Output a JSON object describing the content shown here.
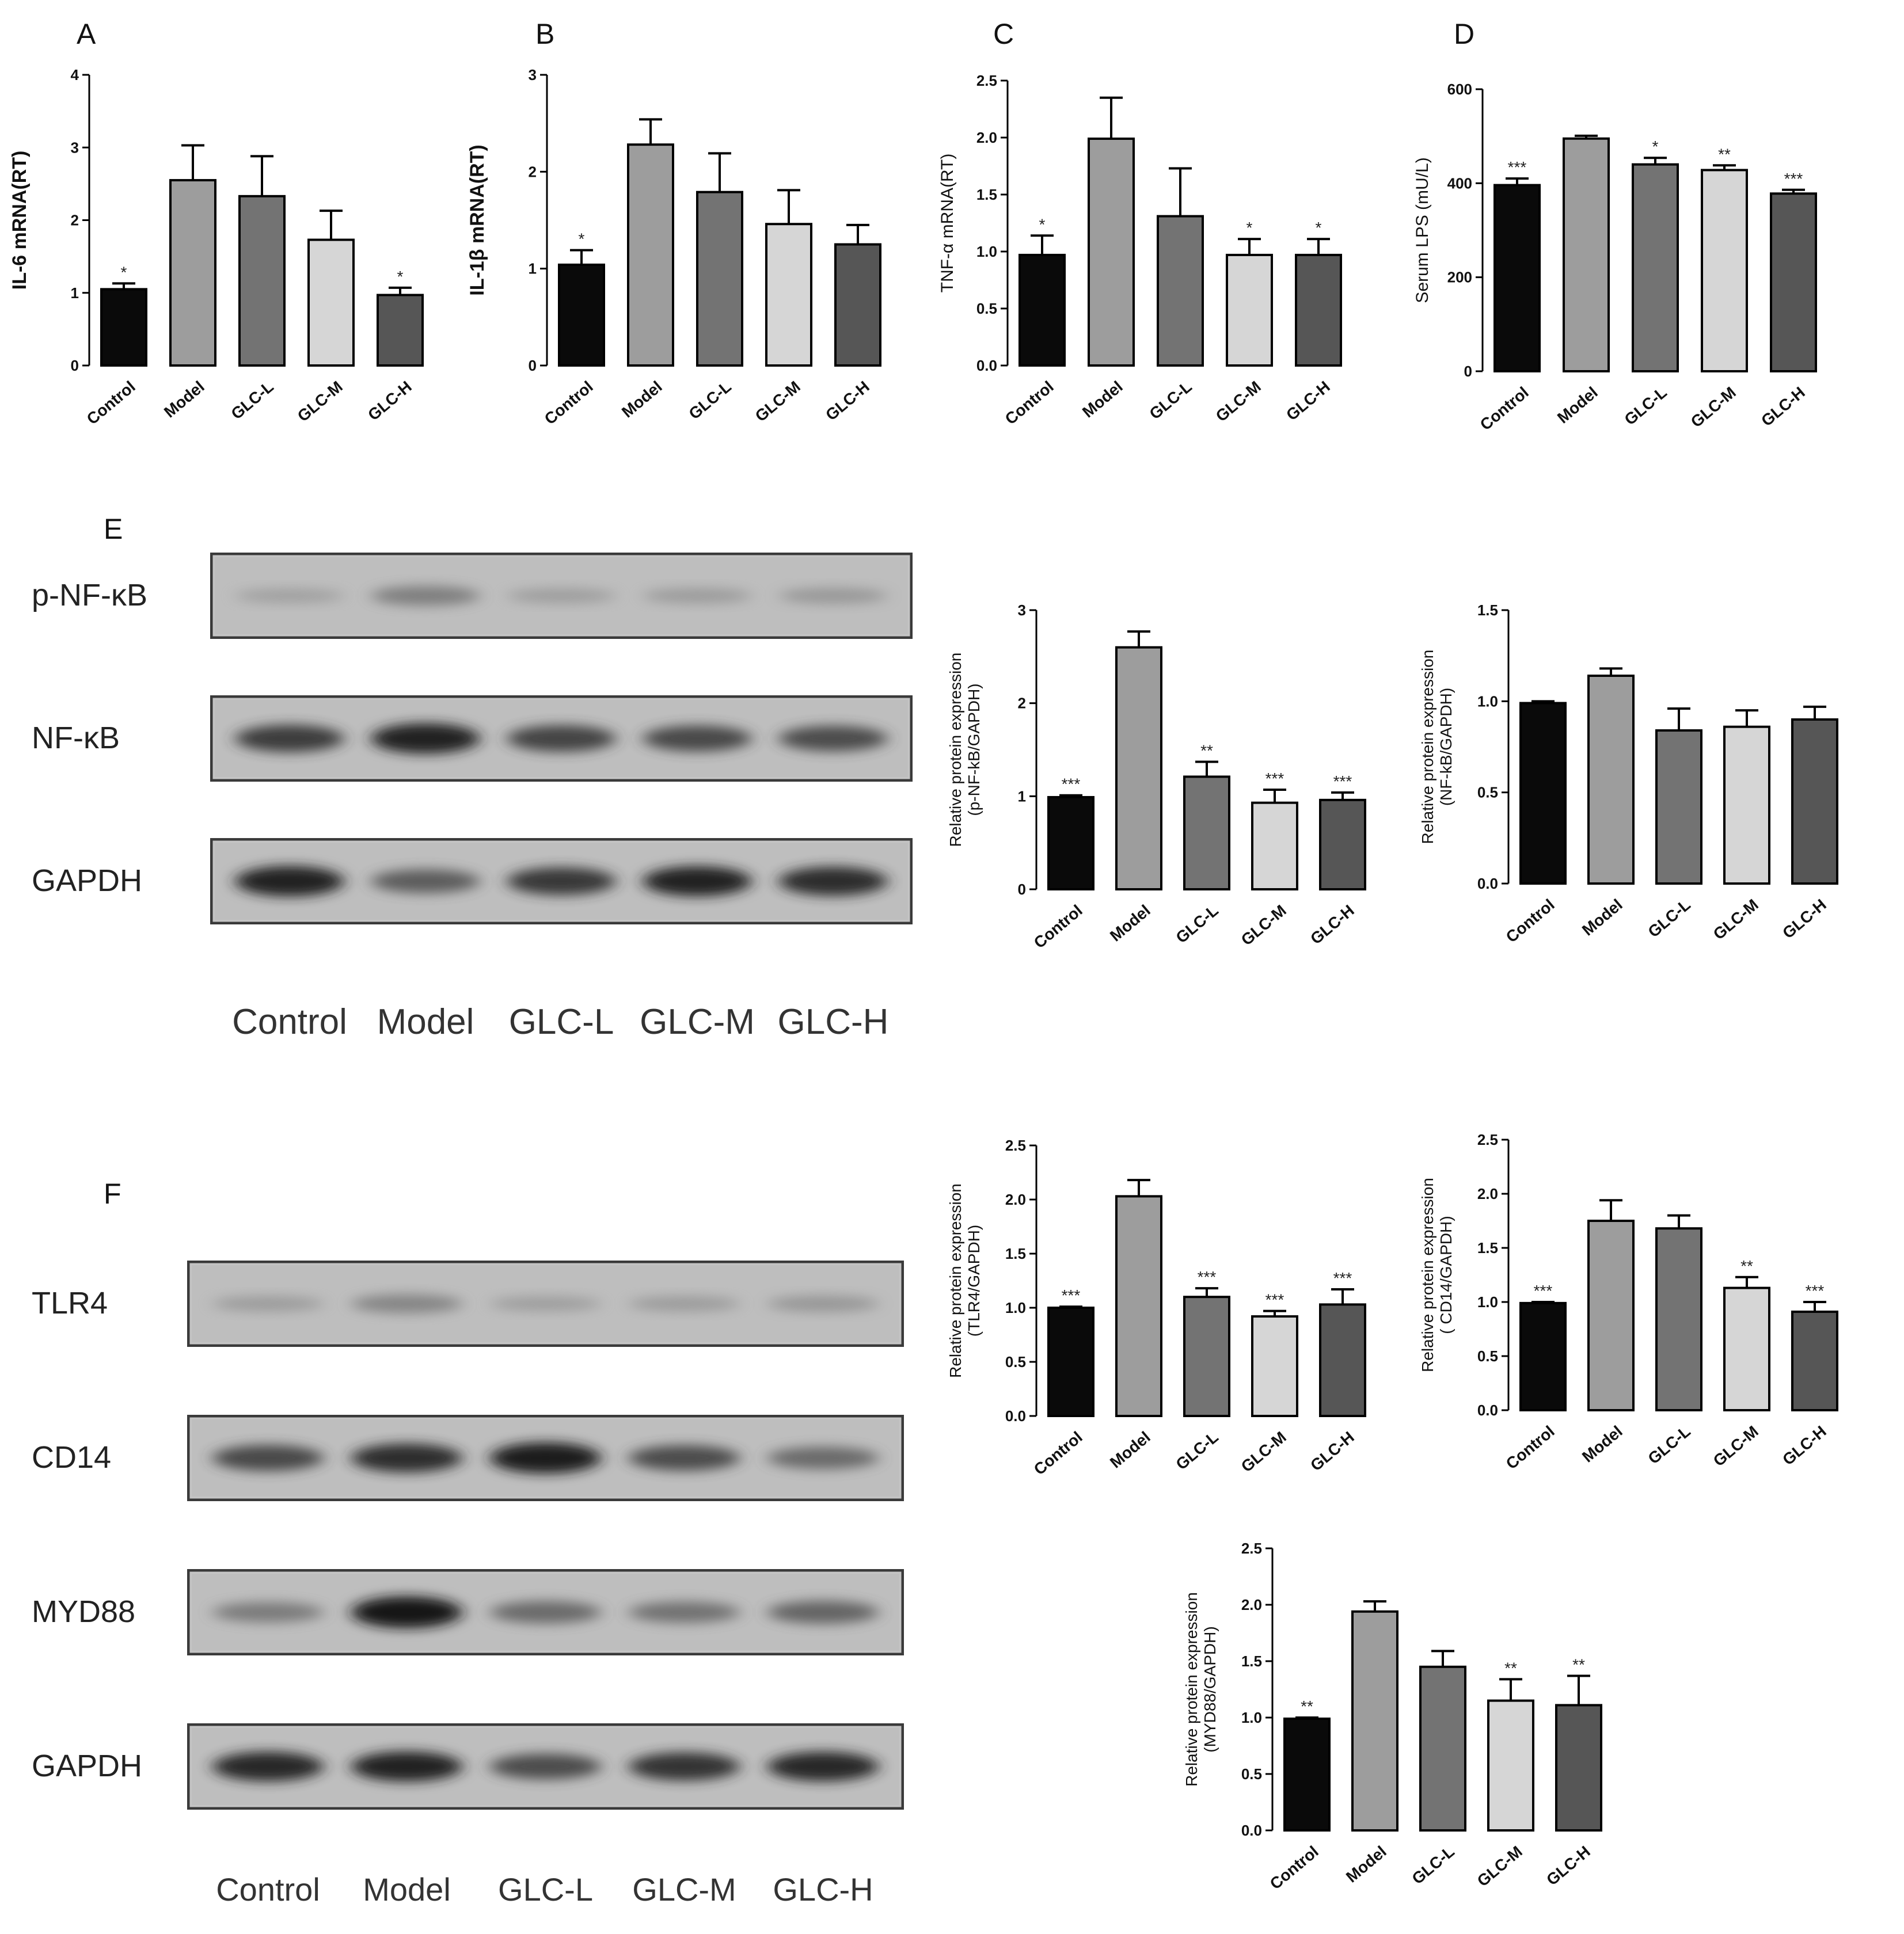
{
  "panels": {
    "a": "A",
    "b": "B",
    "c": "C",
    "d": "D",
    "e": "E",
    "f": "F"
  },
  "blot_e": {
    "rows": [
      "p-NF-κB",
      "NF-κB",
      "GAPDH"
    ],
    "lanes": [
      "Control",
      "Model",
      "GLC-L",
      "GLC-M",
      "GLC-H"
    ]
  },
  "blot_f": {
    "rows": [
      "TLR4",
      "CD14",
      "MYD88",
      "GAPDH"
    ],
    "lanes": [
      "Control",
      "Model",
      "GLC-L",
      "GLC-M",
      "GLC-H"
    ]
  },
  "colors": {
    "Control": "#0a0a0a",
    "Model": "#9d9d9d",
    "GLC-L": "#737373",
    "GLC-M": "#d6d6d6",
    "GLC-H": "#565656"
  },
  "chart_data": [
    {
      "type": "bar",
      "categories": [
        "Control",
        "Model",
        "GLC-L",
        "GLC-M",
        "GLC-H"
      ],
      "ylabel": "IL-6 mRNA(RT)",
      "ylim": [
        0,
        4
      ],
      "yticks": [
        "0",
        "1",
        "2",
        "3",
        "4"
      ],
      "values": [
        1.05,
        2.55,
        2.33,
        1.73,
        0.97
      ],
      "errors": [
        0.08,
        0.48,
        0.55,
        0.4,
        0.1
      ],
      "annotations": [
        "*",
        "",
        "",
        "",
        "*"
      ]
    },
    {
      "type": "bar",
      "categories": [
        "Control",
        "Model",
        "GLC-L",
        "GLC-M",
        "GLC-H"
      ],
      "ylabel": "IL-1β mRNA(RT)",
      "ylim": [
        0,
        3
      ],
      "yticks": [
        "0",
        "1",
        "2",
        "3"
      ],
      "values": [
        1.04,
        2.28,
        1.79,
        1.46,
        1.25
      ],
      "errors": [
        0.15,
        0.26,
        0.4,
        0.35,
        0.2
      ],
      "annotations": [
        "*",
        "",
        "",
        "",
        ""
      ]
    },
    {
      "type": "bar",
      "categories": [
        "Control",
        "Model",
        "GLC-L",
        "GLC-M",
        "GLC-H"
      ],
      "ylabel": "TNF-α mRNA(RT)",
      "ylim": [
        0,
        2.5
      ],
      "yticks": [
        "0.0",
        "0.5",
        "1.0",
        "1.5",
        "2.0",
        "2.5"
      ],
      "values": [
        0.97,
        1.99,
        1.31,
        0.97,
        0.97
      ],
      "errors": [
        0.17,
        0.36,
        0.42,
        0.14,
        0.14
      ],
      "annotations": [
        "*",
        "",
        "",
        "*",
        "*"
      ]
    },
    {
      "type": "bar",
      "categories": [
        "Control",
        "Model",
        "GLC-L",
        "GLC-M",
        "GLC-H"
      ],
      "ylabel": "Serum LPS (mU/L)",
      "ylim": [
        0,
        600
      ],
      "yticks": [
        "0",
        "200",
        "400",
        "600"
      ],
      "values": [
        396,
        495,
        440,
        428,
        378
      ],
      "errors": [
        14,
        6,
        14,
        10,
        8
      ],
      "annotations": [
        "***",
        "",
        "*",
        "**",
        "***"
      ]
    },
    {
      "type": "bar",
      "categories": [
        "Control",
        "Model",
        "GLC-L",
        "GLC-M",
        "GLC-H"
      ],
      "ylabel": "Relative protein expression\n(p-NF-kB/GAPDH)",
      "ylim": [
        0,
        3
      ],
      "yticks": [
        "0",
        "1",
        "2",
        "3"
      ],
      "values": [
        0.99,
        2.6,
        1.21,
        0.93,
        0.96
      ],
      "errors": [
        0.02,
        0.17,
        0.16,
        0.14,
        0.08
      ],
      "annotations": [
        "***",
        "",
        "**",
        "***",
        "***"
      ]
    },
    {
      "type": "bar",
      "categories": [
        "Control",
        "Model",
        "GLC-L",
        "GLC-M",
        "GLC-H"
      ],
      "ylabel": "Relative protein expression\n(NF-kB/GAPDH)",
      "ylim": [
        0,
        1.5
      ],
      "yticks": [
        "0.0",
        "0.5",
        "1.0",
        "1.5"
      ],
      "values": [
        0.99,
        1.14,
        0.84,
        0.86,
        0.9
      ],
      "errors": [
        0.01,
        0.04,
        0.12,
        0.09,
        0.07
      ],
      "annotations": [
        "",
        "",
        "",
        "",
        ""
      ]
    },
    {
      "type": "bar",
      "categories": [
        "Control",
        "Model",
        "GLC-L",
        "GLC-M",
        "GLC-H"
      ],
      "ylabel": "Relative protein expression\n(TLR4/GAPDH)",
      "ylim": [
        0,
        2.5
      ],
      "yticks": [
        "0.0",
        "0.5",
        "1.0",
        "1.5",
        "2.0",
        "2.5"
      ],
      "values": [
        1.0,
        2.03,
        1.1,
        0.92,
        1.03
      ],
      "errors": [
        0.01,
        0.15,
        0.08,
        0.05,
        0.14
      ],
      "annotations": [
        "***",
        "",
        "***",
        "***",
        "***"
      ]
    },
    {
      "type": "bar",
      "categories": [
        "Control",
        "Model",
        "GLC-L",
        "GLC-M",
        "GLC-H"
      ],
      "ylabel": "Relative protein expression\n( CD14/GAPDH)",
      "ylim": [
        0,
        2.5
      ],
      "yticks": [
        "0.0",
        "0.5",
        "1.0",
        "1.5",
        "2.0",
        "2.5"
      ],
      "values": [
        0.99,
        1.75,
        1.68,
        1.13,
        0.91
      ],
      "errors": [
        0.01,
        0.19,
        0.12,
        0.1,
        0.09
      ],
      "annotations": [
        "***",
        "",
        "",
        "**",
        "***"
      ]
    },
    {
      "type": "bar",
      "categories": [
        "Control",
        "Model",
        "GLC-L",
        "GLC-M",
        "GLC-H"
      ],
      "ylabel": "Relative protein expression\n(MYD88/GAPDH)",
      "ylim": [
        0,
        2.5
      ],
      "yticks": [
        "0.0",
        "0.5",
        "1.0",
        "1.5",
        "2.0",
        "2.5"
      ],
      "values": [
        0.99,
        1.94,
        1.45,
        1.15,
        1.11
      ],
      "errors": [
        0.01,
        0.09,
        0.14,
        0.19,
        0.26
      ],
      "annotations": [
        "**",
        "",
        "",
        "**",
        "**"
      ]
    }
  ]
}
